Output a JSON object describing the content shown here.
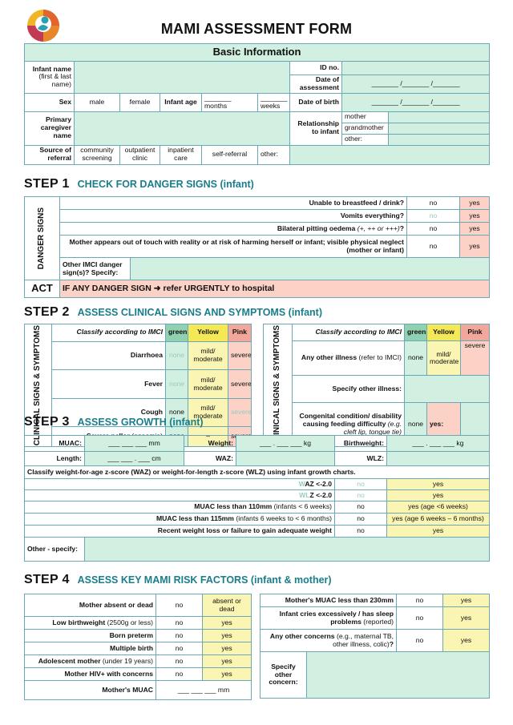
{
  "header": {
    "title": "MAMI ASSESSMENT FORM",
    "logo_icon": "mami-logo-icon"
  },
  "basic": {
    "heading": "Basic Information",
    "infant_name_label": "Infant name",
    "infant_name_sub": "(first & last name)",
    "id_label": "ID no.",
    "date_assess_label": "Date of assessment",
    "date_blank": "_______ /_______ /_______",
    "sex_label": "Sex",
    "male": "male",
    "female": "female",
    "infant_age_label": "Infant age",
    "months": "_______ months",
    "weeks": "_______ weeks",
    "dob_label": "Date of birth",
    "caregiver_label": "Primary caregiver name",
    "relationship_label": "Relationship to infant",
    "mother": "mother",
    "grandmother": "grandmother",
    "other": "other:",
    "source_label": "Source of referral",
    "community": "community screening",
    "outpatient": "outpatient clinic",
    "inpatient": "inpatient care",
    "self": "self-referral",
    "other_src": "other:"
  },
  "step1": {
    "num": "STEP 1",
    "title": "CHECK FOR DANGER SIGNS (infant)",
    "side": "DANGER SIGNS",
    "no": "no",
    "yes": "yes",
    "q1": "Unable to breastfeed / drink?",
    "q2": "Vomits everything?",
    "q3a": "Bilateral pitting oedema",
    "q3b": " (+, ++ or +++)",
    "q3c": "?",
    "q4": "Mother appears out of touch with reality or at risk of harming herself or infant; visible physical neglect (mother or infant)",
    "other_label": "Other IMCI danger sign(s)? Specify:",
    "act_label": "ACT",
    "act_text": "IF ANY DANGER SIGN ➜ refer URGENTLY to hospital"
  },
  "step2": {
    "num": "STEP 2",
    "title": "ASSESS CLINICAL SIGNS AND SYMPTOMS (infant)",
    "side": "CLINICAL SIGNS & SYMPTOMS",
    "classify": "Classify according to IMCI",
    "green": "green",
    "yellow": "Yellow",
    "pink": "Pink",
    "none": "none",
    "mild": "mild/ moderate",
    "severe": "severe",
    "dash": "–",
    "yes_colon": "yes:",
    "diarrhoea": "Diarrhoea",
    "fever": "Fever",
    "cough": "Cough",
    "pallor": "Severe pallor",
    "pallor_sub": "(anaemia)",
    "other_illness": "Any other illness",
    "other_illness_sub": "(refer to IMCI)",
    "specify_other": "Specify other illness:",
    "congenital": "Congenital condition/ disability causing feeding difficulty",
    "congenital_sub": "(e.g. cleft lip, tongue tie)"
  },
  "step3": {
    "num": "STEP 3",
    "title": "ASSESS GROWTH (infant)",
    "muac": "MUAC:",
    "muac_val": "___ ___ ___ mm",
    "weight": "Weight:",
    "weight_val": "___ . ___ ___ kg",
    "birthweight": "Birthweight:",
    "birthweight_val": "___ . ___ ___ kg",
    "length": "Length:",
    "length_val": "___ ___ . ___ cm",
    "waz": "WAZ:",
    "wlz": "WLZ:",
    "classify": "Classify weight-for-age z-score (WAZ) or weight-for-length z-score (WLZ) using infant growth charts.",
    "r1a": "W",
    "r1b": "AZ <-2.0",
    "r2a": "WL",
    "r2b": "Z <-2.0",
    "r3a": "MUAC less than 110mm",
    "r3b": " (infants < 6 weeks)",
    "r4a": "MUAC less than 115mm",
    "r4b": " (infants 6 weeks to < 6 months)",
    "r5": "Recent weight loss or failure to gain adequate weight",
    "no": "no",
    "yes": "yes",
    "yes_lt6w": "yes (age <6 weeks)",
    "yes_6w6m": "yes (age 6 weeks – 6 months)",
    "other_specify": "Other - specify:"
  },
  "step4": {
    "num": "STEP 4",
    "title": "ASSESS KEY MAMI RISK FACTORS (infant & mother)",
    "no": "no",
    "yes": "yes",
    "absent": "Mother absent or dead",
    "absent_yes": "absent or dead",
    "lbw": "Low birthweight",
    "lbw_sub": " (2500g or less)",
    "preterm": "Born preterm",
    "multiple": "Multiple birth",
    "adolescent": "Adolescent mother",
    "adolescent_sub": " (under 19 years)",
    "hiv": "Mother HIV+ with concerns",
    "mother_muac": "Mother's MUAC",
    "mother_muac_val": "___ ___ ___ mm",
    "muac230": "Mother's MUAC less than 230mm",
    "cries": "Infant cries excessively / has sleep problems",
    "cries_sub": " (reported)",
    "concerns": "Any other concerns",
    "concerns_sub": " (e.g., maternal TB, other illness, colic)",
    "concerns_q": "?",
    "specify": "Specify other concern:"
  }
}
